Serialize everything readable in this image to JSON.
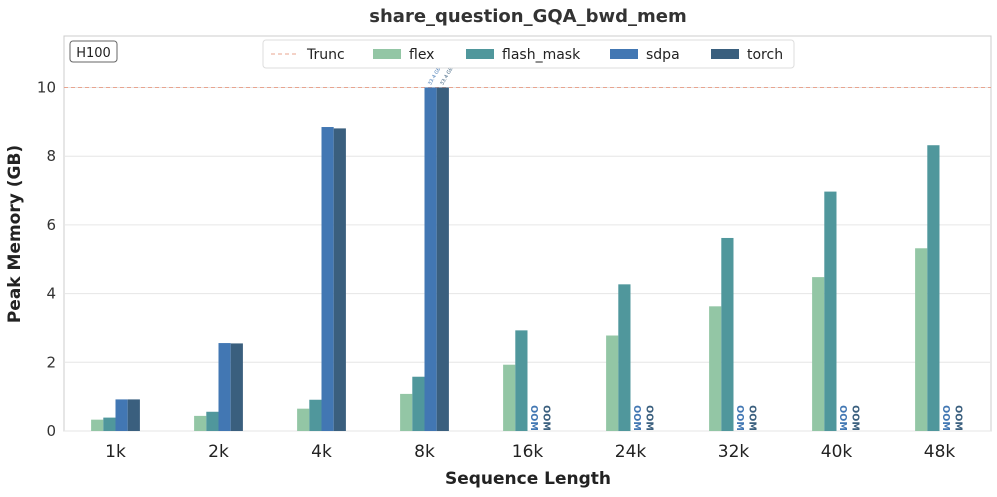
{
  "chart_data": {
    "type": "bar",
    "title": "share_question_GQA_bwd_mem",
    "xlabel": "Sequence Length",
    "ylabel": "Peak Memory (GB)",
    "ylim": [
      0,
      11.5
    ],
    "yticks": [
      0,
      2,
      4,
      6,
      8,
      10
    ],
    "grid": true,
    "legend_position": "top-center",
    "badge": "H100",
    "categories": [
      "1k",
      "2k",
      "4k",
      "8k",
      "16k",
      "24k",
      "32k",
      "40k",
      "48k"
    ],
    "trunc": {
      "name": "Trunc",
      "value": 10,
      "color": "#e8a48f"
    },
    "series": [
      {
        "name": "flex",
        "color": "#93c6a5",
        "values": [
          0.33,
          0.44,
          0.65,
          1.08,
          1.93,
          2.78,
          3.63,
          4.48,
          5.32
        ]
      },
      {
        "name": "flash_mask",
        "color": "#50979c",
        "values": [
          0.39,
          0.56,
          0.91,
          1.58,
          2.93,
          4.27,
          5.62,
          6.97,
          8.32
        ]
      },
      {
        "name": "sdpa",
        "color": "#4277b3",
        "values": [
          0.92,
          2.56,
          8.85,
          10,
          null,
          null,
          null,
          null,
          null
        ]
      },
      {
        "name": "torch",
        "color": "#3a5f7e",
        "values": [
          0.92,
          2.55,
          8.81,
          10,
          null,
          null,
          null,
          null,
          null
        ]
      }
    ],
    "truncated_labels": [
      {
        "series": "sdpa",
        "category": "8k",
        "text": "33.4 GB"
      },
      {
        "series": "torch",
        "category": "8k",
        "text": "33.4 GB"
      }
    ],
    "oom_label": "OOM"
  }
}
